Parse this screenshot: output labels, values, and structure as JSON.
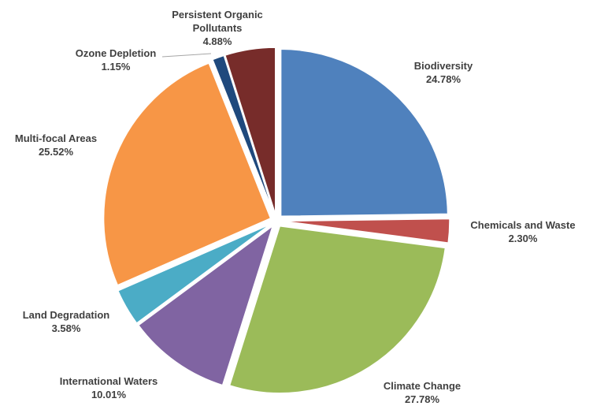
{
  "chart_data": {
    "type": "pie",
    "title": "",
    "labels": [
      "Biodiversity",
      "Chemicals and Waste",
      "Climate Change",
      "International Waters",
      "Land Degradation",
      "Multi-focal Areas",
      "Ozone Depletion",
      "Persistent Organic Pollutants"
    ],
    "values": [
      24.78,
      2.3,
      27.78,
      10.01,
      3.58,
      25.52,
      1.15,
      4.88
    ],
    "value_labels": [
      "24.78%",
      "2.30%",
      "27.78%",
      "10.01%",
      "3.58%",
      "25.52%",
      "1.15%",
      "4.88%"
    ],
    "colors": [
      "#4f81bd",
      "#c0504d",
      "#9bbb59",
      "#8064a2",
      "#4bacc6",
      "#f79646",
      "#1f497d",
      "#772c2a"
    ],
    "exploded": true,
    "legend": "none",
    "data_labels": "outside"
  }
}
